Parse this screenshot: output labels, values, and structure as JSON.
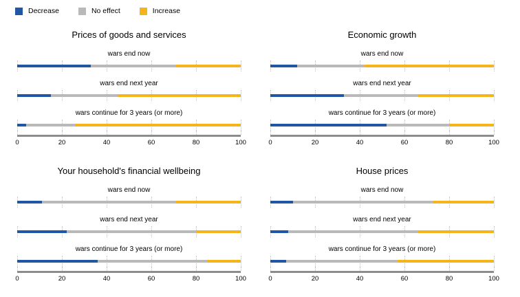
{
  "colors": {
    "decrease": "#2156a5",
    "no_effect": "#b9b9b9",
    "increase": "#f4b41a",
    "axis_line": "#8c8c8c",
    "gridline": "#c4c4c4"
  },
  "legend": {
    "items": [
      {
        "label": "Decrease",
        "color": "#2156a5"
      },
      {
        "label": "No effect",
        "color": "#b9b9b9"
      },
      {
        "label": "Increase",
        "color": "#f4b41a"
      }
    ]
  },
  "chart_data": {
    "type": "bar",
    "orientation": "horizontal",
    "stacked": true,
    "units": "percent",
    "series_names": [
      "Decrease",
      "No effect",
      "Increase"
    ],
    "categories": [
      "wars end now",
      "wars end next year",
      "wars continue for 3 years (or more)"
    ],
    "xlim": [
      0,
      100
    ],
    "x_ticks": [
      0,
      20,
      40,
      60,
      80,
      100
    ],
    "grid": "dotted-vertical",
    "legend_position": "top-left",
    "panels": [
      {
        "title": "Prices of goods and services",
        "rows": [
          {
            "label": "wars end now",
            "decrease": 33,
            "no_effect": 38,
            "increase": 29
          },
          {
            "label": "wars end next year",
            "decrease": 15,
            "no_effect": 30,
            "increase": 55
          },
          {
            "label": "wars continue for 3 years (or more)",
            "decrease": 4,
            "no_effect": 22,
            "increase": 74
          }
        ]
      },
      {
        "title": "Economic growth",
        "rows": [
          {
            "label": "wars end now",
            "decrease": 12,
            "no_effect": 30,
            "increase": 58
          },
          {
            "label": "wars end next year",
            "decrease": 33,
            "no_effect": 33,
            "increase": 34
          },
          {
            "label": "wars continue for 3 years (or more)",
            "decrease": 52,
            "no_effect": 28,
            "increase": 20
          }
        ]
      },
      {
        "title": "Your household's financial wellbeing",
        "rows": [
          {
            "label": "wars end now",
            "decrease": 11,
            "no_effect": 60,
            "increase": 29
          },
          {
            "label": "wars end next year",
            "decrease": 22,
            "no_effect": 58,
            "increase": 20
          },
          {
            "label": "wars continue for 3 years (or more)",
            "decrease": 36,
            "no_effect": 49,
            "increase": 15
          }
        ]
      },
      {
        "title": "House prices",
        "rows": [
          {
            "label": "wars end now",
            "decrease": 10,
            "no_effect": 63,
            "increase": 27
          },
          {
            "label": "wars end next year",
            "decrease": 8,
            "no_effect": 58,
            "increase": 34
          },
          {
            "label": "wars continue for 3 years (or more)",
            "decrease": 7,
            "no_effect": 50,
            "increase": 43
          }
        ]
      }
    ]
  }
}
